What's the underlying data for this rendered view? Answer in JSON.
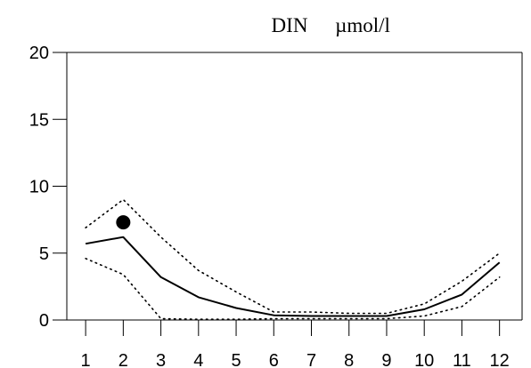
{
  "chart_data": {
    "type": "line",
    "title": "DIN",
    "unit": "µmol/l",
    "xlabel": "",
    "ylabel": "",
    "x": [
      1,
      2,
      3,
      4,
      5,
      6,
      7,
      8,
      9,
      10,
      11,
      12
    ],
    "x_ticks": [
      "1",
      "2",
      "3",
      "4",
      "5",
      "6",
      "7",
      "8",
      "9",
      "10",
      "11",
      "12"
    ],
    "ylim": [
      0,
      20
    ],
    "y_ticks": [
      "0",
      "5",
      "10",
      "15",
      "20"
    ],
    "grid": false,
    "series": [
      {
        "style": "solid",
        "values": [
          5.7,
          6.2,
          3.2,
          1.7,
          0.9,
          0.35,
          0.3,
          0.3,
          0.3,
          0.8,
          1.9,
          4.3
        ]
      },
      {
        "style": "dotted",
        "values": [
          6.9,
          9.0,
          6.2,
          3.7,
          2.1,
          0.6,
          0.6,
          0.5,
          0.5,
          1.2,
          2.9,
          5.0
        ]
      },
      {
        "style": "dotted",
        "values": [
          4.6,
          3.4,
          0.1,
          0.05,
          0.05,
          0.1,
          0.1,
          0.1,
          0.1,
          0.3,
          1.0,
          3.2
        ]
      },
      {
        "style": "marker",
        "x": [
          2
        ],
        "values": [
          7.3
        ]
      }
    ]
  }
}
